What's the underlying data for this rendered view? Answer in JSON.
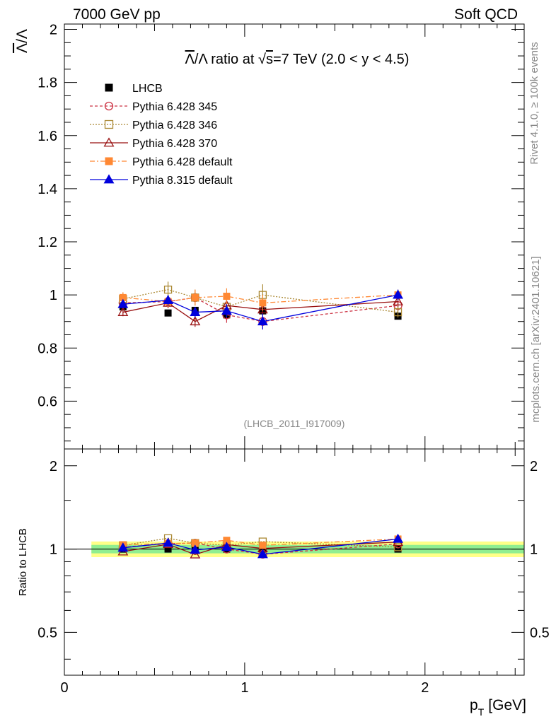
{
  "header": {
    "left": "7000 GeV pp",
    "right": "Soft QCD"
  },
  "side": {
    "rivet": "Rivet 4.1.0, ≥ 100k events",
    "mcplots": "mcplots.cern.ch [arXiv:2401.10621]"
  },
  "chart_data": {
    "type": "scatter",
    "title_parts": [
      "Λ",
      "/Λ ratio at √",
      "s",
      "=7 TeV (2.0 < y < 4.5)"
    ],
    "analysis_tag": "(LHCB_2011_I917009)",
    "ylabel_main": "Λ/Λ",
    "ylabel_main_parts": [
      "Λ",
      "/Λ"
    ],
    "ylabel_ratio": "Ratio to LHCB",
    "xlabel": "p",
    "xlabel_sub": "T",
    "xlabel_unit": "[GeV]",
    "xlim": [
      0,
      2.55
    ],
    "ylim_main": [
      0.42,
      2.02
    ],
    "ylim_ratio": [
      0.35,
      2.3
    ],
    "x_ticks": [
      "0",
      "1",
      "2"
    ],
    "y_ticks_main": [
      "0.6",
      "0.8",
      "1",
      "1.2",
      "1.4",
      "1.6",
      "1.8",
      "2"
    ],
    "y_ticks_ratio": [
      "0.5",
      "1",
      "2"
    ],
    "x": [
      0.325,
      0.575,
      0.725,
      0.9,
      1.1,
      1.85
    ],
    "band_x": [
      0.15,
      2.55
    ],
    "band_green": 0.035,
    "band_yellow": 0.065,
    "series": [
      {
        "name": "LHCB",
        "color": "#000000",
        "marker": "square-filled",
        "dash": "none",
        "values": [
          0.955,
          0.932,
          0.942,
          0.925,
          0.94,
          0.92
        ],
        "errors": [
          0.01,
          0.01,
          0.01,
          0.01,
          0.01,
          0.01
        ]
      },
      {
        "name": "Pythia 6.428 345",
        "color": "#cc3344",
        "marker": "circle-open",
        "dash": "4,3",
        "values": [
          0.97,
          0.975,
          0.99,
          0.925,
          0.9,
          0.96
        ],
        "errors": [
          0.02,
          0.02,
          0.02,
          0.03,
          0.03,
          0.02
        ]
      },
      {
        "name": "Pythia 6.428 346",
        "color": "#aa8833",
        "marker": "square-open",
        "dash": "2,2",
        "values": [
          0.985,
          1.02,
          0.99,
          0.955,
          1.0,
          0.935
        ],
        "errors": [
          0.02,
          0.03,
          0.03,
          0.03,
          0.04,
          0.02
        ]
      },
      {
        "name": "Pythia 6.428 370",
        "color": "#991111",
        "marker": "triangle-open",
        "dash": "none",
        "values": [
          0.935,
          0.97,
          0.9,
          0.96,
          0.945,
          0.975
        ],
        "errors": [
          0.015,
          0.02,
          0.02,
          0.02,
          0.02,
          0.02
        ]
      },
      {
        "name": "Pythia 6.428 default",
        "color": "#ff8833",
        "marker": "square-filled",
        "dash": "7,3,2,3",
        "values": [
          0.99,
          0.975,
          0.99,
          0.995,
          0.97,
          1.0
        ],
        "errors": [
          0.02,
          0.02,
          0.03,
          0.03,
          0.03,
          0.02
        ]
      },
      {
        "name": "Pythia 8.315 default",
        "color": "#0000dd",
        "marker": "triangle-filled",
        "dash": "none",
        "values": [
          0.965,
          0.98,
          0.935,
          0.94,
          0.9,
          1.0
        ],
        "errors": [
          0.015,
          0.02,
          0.02,
          0.025,
          0.03,
          0.02
        ]
      }
    ]
  }
}
